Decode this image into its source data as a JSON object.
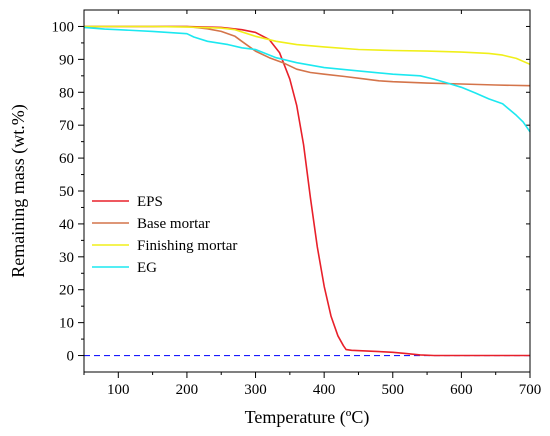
{
  "chart_data": {
    "type": "line",
    "xlabel": "Temperature (ºC)",
    "ylabel": "Remaining mass (wt.%)",
    "xlim": [
      50,
      700
    ],
    "ylim": [
      -5,
      105
    ],
    "xticks": [
      100,
      200,
      300,
      400,
      500,
      600,
      700
    ],
    "yticks": [
      0,
      10,
      20,
      30,
      40,
      50,
      60,
      70,
      80,
      90,
      100
    ],
    "xtick_labels": [
      "100",
      "200",
      "300",
      "400",
      "500",
      "600",
      "700"
    ],
    "ytick_labels": [
      "0",
      "10",
      "20",
      "30",
      "40",
      "50",
      "60",
      "70",
      "80",
      "90",
      "100"
    ],
    "grid": false,
    "legend_position": "middle-left",
    "reference_line": {
      "y": 0,
      "color": "#1a1aff",
      "style": "dashed"
    },
    "series": [
      {
        "name": "EPS",
        "color": "#e8202a",
        "x": [
          50,
          100,
          150,
          200,
          250,
          280,
          300,
          320,
          335,
          350,
          360,
          370,
          380,
          390,
          400,
          410,
          420,
          428,
          432,
          440,
          460,
          480,
          500,
          520,
          540,
          560,
          600,
          650,
          700
        ],
        "y": [
          100,
          100,
          100,
          100,
          99.7,
          99,
          98.2,
          96,
          92,
          84,
          76,
          64,
          48,
          33,
          21,
          12,
          6,
          3,
          1.8,
          1.6,
          1.4,
          1.2,
          1.0,
          0.6,
          0.2,
          0,
          0,
          0,
          0
        ]
      },
      {
        "name": "Base mortar",
        "color": "#d4744a",
        "x": [
          50,
          100,
          150,
          200,
          230,
          250,
          270,
          280,
          300,
          320,
          340,
          360,
          380,
          400,
          430,
          460,
          480,
          500,
          550,
          600,
          650,
          700
        ],
        "y": [
          100,
          100,
          100,
          100,
          99.3,
          98.5,
          97,
          95.5,
          92.5,
          90.5,
          89,
          87,
          86,
          85.5,
          84.8,
          84,
          83.5,
          83.2,
          82.8,
          82.5,
          82.2,
          82
        ]
      },
      {
        "name": "Finishing mortar",
        "color": "#f0ef1a",
        "x": [
          50,
          100,
          150,
          200,
          250,
          270,
          300,
          330,
          360,
          400,
          450,
          500,
          550,
          600,
          640,
          660,
          680,
          700
        ],
        "y": [
          100,
          100,
          100,
          99.8,
          99.5,
          99,
          97,
          95.5,
          94.5,
          93.8,
          93,
          92.7,
          92.5,
          92.2,
          91.8,
          91.3,
          90.3,
          88.5
        ]
      },
      {
        "name": "EG",
        "color": "#1ce8f0",
        "x": [
          50,
          80,
          100,
          150,
          200,
          210,
          230,
          260,
          280,
          300,
          330,
          360,
          400,
          450,
          500,
          540,
          560,
          580,
          600,
          620,
          640,
          660,
          680,
          690,
          700
        ],
        "y": [
          99.7,
          99.2,
          99,
          98.5,
          97.8,
          96.8,
          95.5,
          94.5,
          93.5,
          93,
          90.5,
          89,
          87.5,
          86.5,
          85.5,
          85,
          84,
          82.8,
          81.5,
          79.8,
          78,
          76.5,
          73,
          71,
          68
        ]
      }
    ]
  }
}
